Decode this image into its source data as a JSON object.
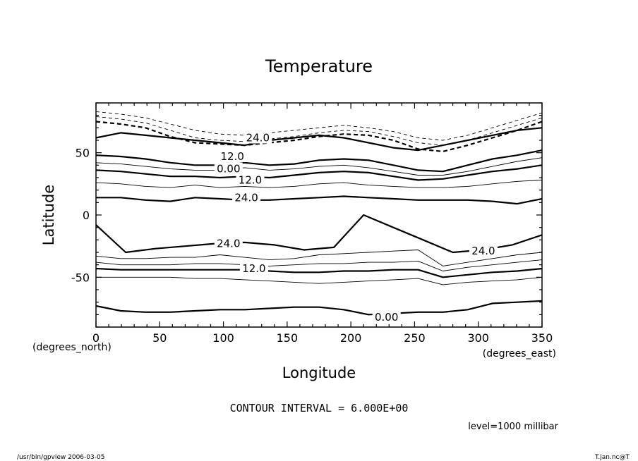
{
  "chart_data": {
    "type": "contour",
    "title": "Temperature",
    "xlabel": "Longitude",
    "ylabel": "Latitude",
    "x_unit_label": "(degrees_east)",
    "y_unit_label": "(degrees_north)",
    "xlim": [
      0,
      350
    ],
    "ylim": [
      -90,
      90
    ],
    "x_ticks": [
      0,
      50,
      100,
      150,
      200,
      250,
      300,
      350
    ],
    "y_ticks": [
      50,
      0,
      -50
    ],
    "contour_interval_text": "CONTOUR INTERVAL = 6.000E+00",
    "level_text": "level=1000 millibar",
    "contour_labels": [
      {
        "text": "24.0",
        "lon": 127,
        "lat": 62
      },
      {
        "text": "12.0",
        "lon": 107,
        "lat": 47
      },
      {
        "text": "0.00",
        "lon": 104,
        "lat": 37
      },
      {
        "text": "12.0",
        "lon": 121,
        "lat": 28
      },
      {
        "text": "24.0",
        "lon": 118,
        "lat": 14
      },
      {
        "text": "24.0",
        "lon": 104,
        "lat": -23
      },
      {
        "text": "12.0",
        "lon": 124,
        "lat": -43
      },
      {
        "text": "24.0",
        "lon": 304,
        "lat": -29
      },
      {
        "text": "0.00",
        "lon": 228,
        "lat": -82
      }
    ],
    "contours": [
      {
        "style": "thick",
        "lats": [
          62,
          66,
          64,
          62,
          60,
          58,
          56,
          60,
          62,
          64,
          62,
          58,
          54,
          52,
          56,
          60,
          64,
          68,
          70
        ]
      },
      {
        "style": "dash-thick",
        "lats": [
          75,
          73,
          70,
          63,
          58,
          57,
          56,
          58,
          60,
          63,
          65,
          64,
          60,
          53,
          51,
          56,
          62,
          68,
          75
        ]
      },
      {
        "style": "dash",
        "lats": [
          79,
          77,
          74,
          68,
          62,
          60,
          59,
          61,
          63,
          66,
          68,
          67,
          63,
          58,
          56,
          60,
          66,
          72,
          78
        ]
      },
      {
        "style": "dash",
        "lats": [
          83,
          81,
          78,
          73,
          68,
          65,
          64,
          66,
          68,
          70,
          72,
          70,
          67,
          62,
          60,
          64,
          70,
          76,
          82
        ]
      },
      {
        "style": "thick",
        "lats": [
          48,
          47,
          45,
          42,
          40,
          40,
          42,
          40,
          41,
          44,
          45,
          44,
          40,
          36,
          35,
          40,
          45,
          48,
          52
        ]
      },
      {
        "style": "thin",
        "lats": [
          42,
          41,
          39,
          37,
          36,
          36,
          38,
          36,
          37,
          39,
          40,
          38,
          35,
          32,
          32,
          35,
          39,
          43,
          46
        ]
      },
      {
        "style": "thick",
        "lats": [
          36,
          35,
          33,
          31,
          31,
          30,
          31,
          30,
          32,
          34,
          35,
          34,
          31,
          28,
          29,
          32,
          35,
          37,
          40
        ]
      },
      {
        "style": "thin",
        "lats": [
          26,
          25,
          23,
          22,
          24,
          22,
          23,
          22,
          23,
          25,
          26,
          24,
          23,
          22,
          22,
          23,
          25,
          27,
          28
        ]
      },
      {
        "style": "thick",
        "lats": [
          14,
          14,
          12,
          11,
          14,
          13,
          12,
          12,
          13,
          14,
          15,
          14,
          13,
          12,
          12,
          12,
          11,
          9,
          13
        ]
      },
      {
        "style": "thick",
        "lats": [
          -8,
          -30,
          -27,
          -25,
          -23,
          -22,
          -24,
          -28,
          -26,
          0,
          -10,
          -20,
          -30,
          -28,
          -24,
          -16
        ]
      },
      {
        "style": "thin",
        "lats": [
          -33,
          -35,
          -35,
          -34,
          -34,
          -32,
          -34,
          -36,
          -35,
          -32,
          -31,
          -30,
          -29,
          -28,
          -41,
          -38,
          -35,
          -32,
          -30
        ]
      },
      {
        "style": "thin",
        "lats": [
          -38,
          -40,
          -40,
          -40,
          -39,
          -39,
          -40,
          -41,
          -40,
          -39,
          -39,
          -38,
          -38,
          -37,
          -45,
          -42,
          -40,
          -38,
          -36
        ]
      },
      {
        "style": "thick",
        "lats": [
          -43,
          -44,
          -44,
          -44,
          -44,
          -44,
          -44,
          -45,
          -46,
          -46,
          -45,
          -45,
          -44,
          -44,
          -50,
          -48,
          -46,
          -45,
          -43
        ]
      },
      {
        "style": "thin",
        "lats": [
          -50,
          -50,
          -50,
          -50,
          -51,
          -51,
          -52,
          -53,
          -54,
          -55,
          -54,
          -53,
          -52,
          -51,
          -56,
          -54,
          -53,
          -52,
          -50
        ]
      },
      {
        "style": "thick",
        "lats": [
          -73,
          -77,
          -78,
          -78,
          -77,
          -76,
          -76,
          -75,
          -74,
          -74,
          -76,
          -80,
          -79,
          -78,
          -78,
          -76,
          -71,
          -70,
          -69
        ]
      }
    ]
  },
  "footer": {
    "left": "/usr/bin/gpview   2006-03-05",
    "right": "T.jan.nc@T"
  }
}
